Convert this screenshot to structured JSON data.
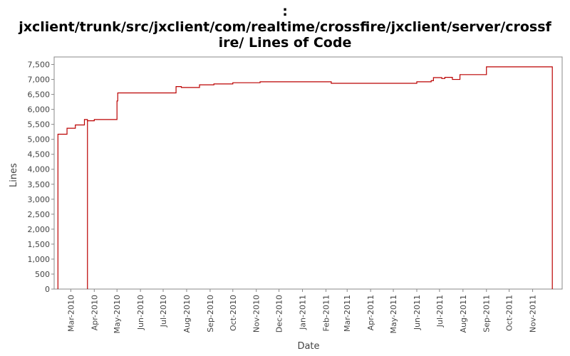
{
  "chart_data": {
    "type": "line",
    "title_lines": [
      ":",
      "jxclient/trunk/src/jxclient/com/realtime/crossfire/jxclient/server/crossf",
      "ire/ Lines of Code"
    ],
    "xlabel": "Date",
    "ylabel": "Lines",
    "ylim": [
      0,
      7750
    ],
    "y_ticks": [
      0,
      500,
      1000,
      1500,
      2000,
      2500,
      3000,
      3500,
      4000,
      4500,
      5000,
      5500,
      6000,
      6500,
      7000,
      7500
    ],
    "y_tick_labels": [
      "0",
      "500",
      "1,000",
      "1,500",
      "2,000",
      "2,500",
      "3,000",
      "3,500",
      "4,000",
      "4,500",
      "5,000",
      "5,500",
      "6,000",
      "6,500",
      "7,000",
      "7,500"
    ],
    "xlim": [
      "2010-02-07",
      "2011-12-10"
    ],
    "x_ticks": [
      "2010-03-01",
      "2010-04-01",
      "2010-05-01",
      "2010-06-01",
      "2010-07-01",
      "2010-08-01",
      "2010-09-01",
      "2010-10-01",
      "2010-11-01",
      "2010-12-01",
      "2011-01-01",
      "2011-02-01",
      "2011-03-01",
      "2011-04-01",
      "2011-05-01",
      "2011-06-01",
      "2011-07-01",
      "2011-08-01",
      "2011-09-01",
      "2011-10-01",
      "2011-11-01"
    ],
    "x_tick_labels": [
      "Mar-2010",
      "Apr-2010",
      "May-2010",
      "Jun-2010",
      "Jul-2010",
      "Aug-2010",
      "Sep-2010",
      "Oct-2010",
      "Nov-2010",
      "Dec-2010",
      "Jan-2011",
      "Feb-2011",
      "Mar-2011",
      "Apr-2011",
      "May-2011",
      "Jun-2011",
      "Jul-2011",
      "Aug-2011",
      "Sep-2011",
      "Oct-2011",
      "Nov-2011"
    ],
    "grid": false,
    "line_color": "#bb0000",
    "series": [
      {
        "step": true,
        "points": [
          [
            "2010-02-12",
            0
          ],
          [
            "2010-02-12",
            5170
          ],
          [
            "2010-02-24",
            5170
          ],
          [
            "2010-02-24",
            5370
          ],
          [
            "2010-03-07",
            5370
          ],
          [
            "2010-03-07",
            5480
          ],
          [
            "2010-03-19",
            5480
          ],
          [
            "2010-03-19",
            5660
          ],
          [
            "2010-03-23",
            5660
          ],
          [
            "2010-03-23",
            0
          ],
          [
            "2010-03-23",
            5620
          ],
          [
            "2010-04-01",
            5620
          ],
          [
            "2010-04-01",
            5660
          ],
          [
            "2010-05-01",
            5660
          ],
          [
            "2010-05-01",
            6280
          ],
          [
            "2010-05-02",
            6280
          ],
          [
            "2010-05-02",
            6550
          ],
          [
            "2010-07-18",
            6550
          ],
          [
            "2010-07-18",
            6760
          ],
          [
            "2010-07-25",
            6760
          ],
          [
            "2010-07-25",
            6730
          ],
          [
            "2010-08-18",
            6730
          ],
          [
            "2010-08-18",
            6820
          ],
          [
            "2010-09-06",
            6820
          ],
          [
            "2010-09-06",
            6850
          ],
          [
            "2010-10-01",
            6850
          ],
          [
            "2010-10-01",
            6890
          ],
          [
            "2010-11-06",
            6890
          ],
          [
            "2010-11-06",
            6920
          ],
          [
            "2011-02-08",
            6920
          ],
          [
            "2011-02-08",
            6870
          ],
          [
            "2011-06-01",
            6870
          ],
          [
            "2011-06-01",
            6920
          ],
          [
            "2011-06-20",
            6920
          ],
          [
            "2011-06-20",
            6960
          ],
          [
            "2011-06-23",
            6960
          ],
          [
            "2011-06-23",
            7060
          ],
          [
            "2011-07-04",
            7060
          ],
          [
            "2011-07-04",
            7030
          ],
          [
            "2011-07-08",
            7030
          ],
          [
            "2011-07-08",
            7070
          ],
          [
            "2011-07-18",
            7070
          ],
          [
            "2011-07-18",
            7000
          ],
          [
            "2011-07-28",
            7000
          ],
          [
            "2011-07-28",
            7160
          ],
          [
            "2011-09-01",
            7160
          ],
          [
            "2011-09-01",
            7420
          ],
          [
            "2011-11-27",
            7420
          ],
          [
            "2011-11-27",
            0
          ]
        ]
      }
    ]
  }
}
